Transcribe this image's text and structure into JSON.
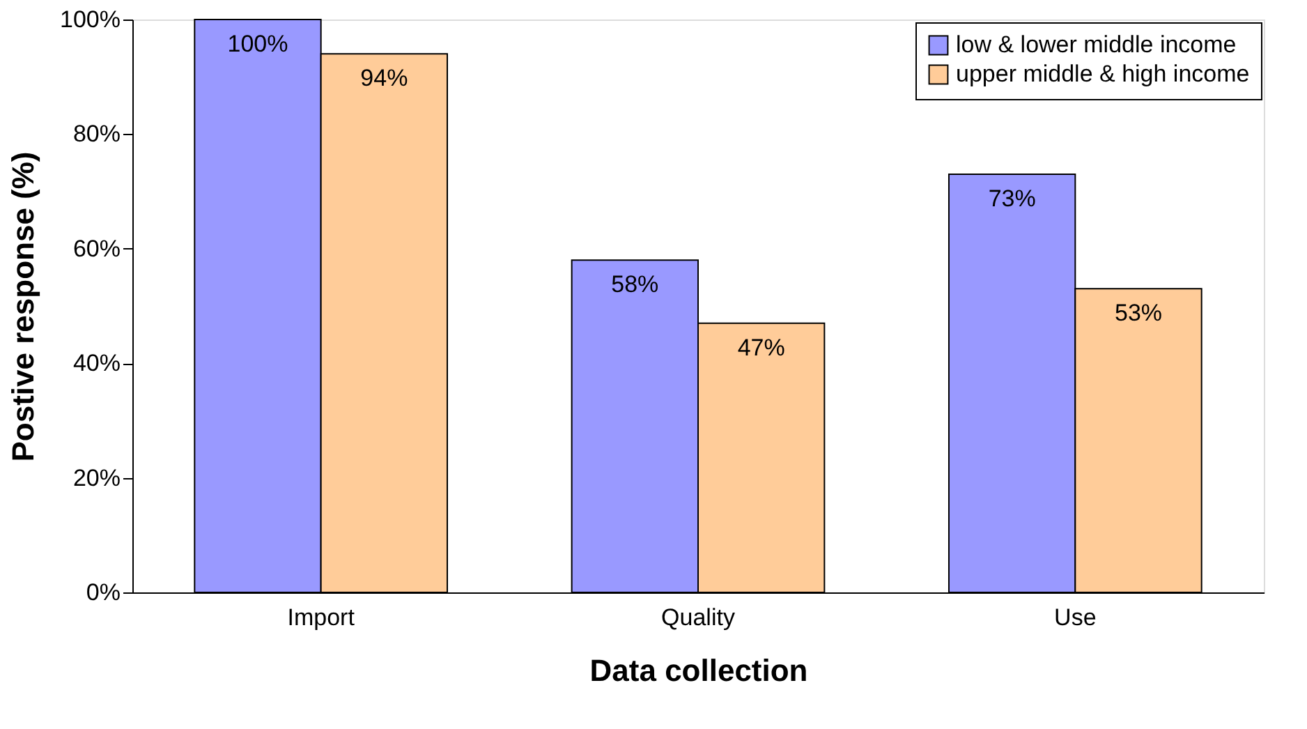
{
  "chart_data": {
    "type": "bar",
    "xlabel": "Data collection",
    "ylabel": "Postive response (%)",
    "categories": [
      "Import",
      "Quality",
      "Use"
    ],
    "series": [
      {
        "name": "low & lower middle income",
        "color": "#9999ff",
        "values": [
          100,
          58,
          73
        ],
        "value_labels": [
          "100%",
          "58%",
          "73%"
        ]
      },
      {
        "name": "upper middle & high income",
        "color": "#ffcc99",
        "values": [
          94,
          47,
          53
        ],
        "value_labels": [
          "94%",
          "47%",
          "53%"
        ]
      }
    ],
    "ylim": [
      0,
      100
    ],
    "yticks": [
      {
        "value": 0,
        "label": "0%"
      },
      {
        "value": 20,
        "label": "20%"
      },
      {
        "value": 40,
        "label": "40%"
      },
      {
        "value": 60,
        "label": "60%"
      },
      {
        "value": 80,
        "label": "80%"
      },
      {
        "value": 100,
        "label": "100%"
      }
    ],
    "grid": false,
    "legend": "top right"
  }
}
